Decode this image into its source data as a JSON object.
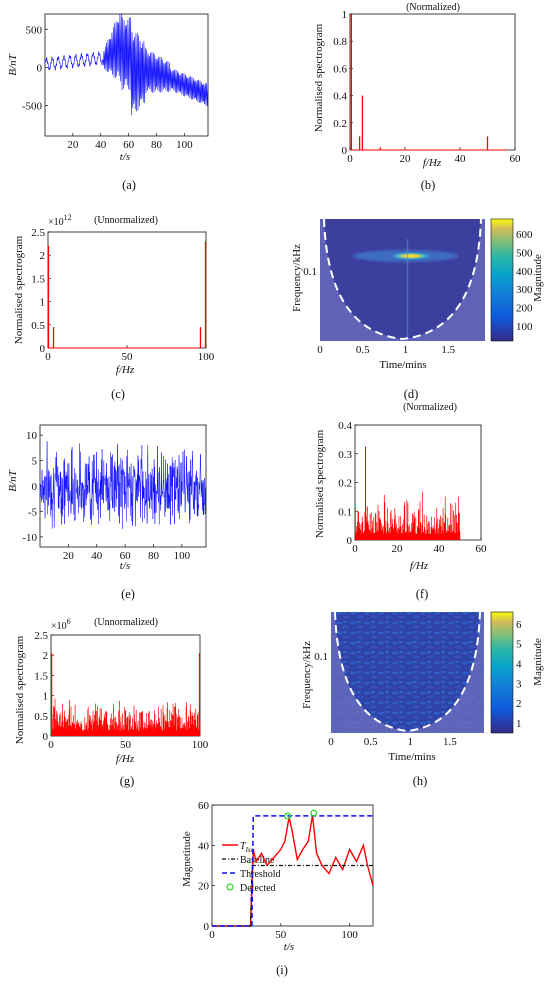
{
  "panel_labels": {
    "a": "(a)",
    "b": "(b)",
    "c": "(c)",
    "d": "(d)",
    "e": "(e)",
    "f": "(f)",
    "g": "(g)",
    "h": "(h)",
    "i": "(i)"
  },
  "colors": {
    "blue": "#0a0aff",
    "red": "#ff0000",
    "cwt_bg": "#3b3f9e",
    "cwt_cone": "#6e6fbf",
    "axis": "#111111"
  },
  "chart_data": [
    {
      "id": "a",
      "type": "line",
      "title": "",
      "xlabel": "t/s",
      "ylabel": "B/nT",
      "xlim": [
        0,
        117
      ],
      "ylim": [
        -900,
        700
      ],
      "xticks": [
        20,
        40,
        60,
        80,
        100
      ],
      "yticks": [
        500,
        0,
        -500
      ],
      "series": [
        {
          "color": "#0a0aff",
          "description_points": [
            [
              0,
              40
            ],
            [
              20,
              110
            ],
            [
              40,
              130
            ],
            [
              50,
              300
            ],
            [
              58,
              680
            ],
            [
              66,
              -860
            ],
            [
              80,
              120
            ],
            [
              100,
              -200
            ],
            [
              117,
              -350
            ]
          ]
        }
      ]
    },
    {
      "id": "b",
      "type": "line",
      "title": "(Normalized)",
      "xlabel": "f/Hz",
      "ylabel": "Normalised spectrogram",
      "xlim": [
        0,
        60
      ],
      "ylim": [
        0,
        1
      ],
      "xticks": [
        0,
        20,
        40,
        60
      ],
      "yticks": [
        0,
        0.2,
        0.4,
        0.6,
        0.8,
        1
      ],
      "peaks": [
        [
          0.5,
          1.0
        ],
        [
          3.5,
          0.1
        ],
        [
          4.5,
          0.4
        ],
        [
          11,
          0.02
        ],
        [
          50,
          0.1
        ]
      ]
    },
    {
      "id": "c",
      "type": "line",
      "title": "(Unnormalized)",
      "xlabel": "f/Hz",
      "ylabel": "Normalised spectrogram",
      "xlim": [
        0,
        100
      ],
      "ylim": [
        0,
        2.5
      ],
      "exponent": "12",
      "xticks": [
        0,
        50,
        100
      ],
      "yticks": [
        0,
        0.5,
        1,
        1.5,
        2,
        2.5
      ],
      "peaks": [
        [
          0.3,
          2.2
        ],
        [
          3.5,
          0.45
        ],
        [
          96.5,
          0.45
        ],
        [
          99.7,
          2.3
        ]
      ]
    },
    {
      "id": "d",
      "type": "heatmap",
      "title": "",
      "xlabel": "Time/mins",
      "ylabel": "Frequency/kHz",
      "xticks": [
        0,
        0.5,
        1,
        1.5
      ],
      "yticks": [
        0.1
      ],
      "colorbar": {
        "label": "Magnitude",
        "ticks": [
          100,
          200,
          300,
          400,
          500,
          600
        ]
      }
    },
    {
      "id": "e",
      "type": "line",
      "title": "",
      "xlabel": "t/s",
      "ylabel": "B/nT",
      "xlim": [
        0,
        117
      ],
      "ylim": [
        -12,
        12
      ],
      "xticks": [
        20,
        40,
        60,
        80,
        100
      ],
      "yticks": [
        10,
        5,
        0,
        -5,
        -10
      ]
    },
    {
      "id": "f",
      "type": "line",
      "title": "(Normalized)",
      "xlabel": "f/Hz",
      "ylabel": "Normalised spectrogram",
      "xlim": [
        0,
        60
      ],
      "ylim": [
        0,
        0.4
      ],
      "xticks": [
        0,
        20,
        40,
        60
      ],
      "yticks": [
        0,
        0.1,
        0.2,
        0.3,
        0.4
      ]
    },
    {
      "id": "g",
      "type": "line",
      "title": "(Unnormalized)",
      "xlabel": "f/Hz",
      "ylabel": "Normalised spectrogram",
      "xlim": [
        0,
        100
      ],
      "ylim": [
        0,
        2.5
      ],
      "exponent": "6",
      "xticks": [
        0,
        50,
        100
      ],
      "yticks": [
        0,
        0.5,
        1,
        1.5,
        2,
        2.5
      ]
    },
    {
      "id": "h",
      "type": "heatmap",
      "title": "",
      "xlabel": "Time/mins",
      "ylabel": "Frequency/kHz",
      "xticks": [
        0,
        0.5,
        1,
        1.5
      ],
      "yticks": [
        0.1
      ],
      "colorbar": {
        "label": "Magnitude",
        "ticks": [
          1,
          2,
          3,
          4,
          5,
          6
        ]
      }
    },
    {
      "id": "i",
      "type": "line",
      "title": "",
      "xlabel": "t/s",
      "ylabel": "Magnetitude",
      "xlim": [
        0,
        117
      ],
      "ylim": [
        0,
        60
      ],
      "xticks": [
        0,
        50,
        100
      ],
      "yticks": [
        0,
        20,
        40,
        60
      ],
      "legend": {
        "placement": "left",
        "entries": [
          "T_Iso",
          "Baseline",
          "Threshold",
          "Detected"
        ]
      },
      "series": [
        {
          "name": "T_Iso",
          "color": "#ff0000",
          "x": [
            0,
            28,
            30,
            32,
            36,
            40,
            45,
            50,
            53,
            56,
            58,
            62,
            66,
            70,
            73,
            76,
            80,
            85,
            90,
            95,
            100,
            105,
            110,
            113,
            117
          ],
          "y": [
            0,
            0,
            38,
            32,
            36,
            30,
            34,
            38,
            42,
            54,
            48,
            33,
            38,
            42,
            55,
            36,
            30,
            26,
            34,
            28,
            38,
            32,
            40,
            30,
            20
          ]
        },
        {
          "name": "Baseline",
          "color": "#111111",
          "x": [
            0,
            28,
            29,
            117
          ],
          "y": [
            0,
            0,
            30,
            30
          ]
        },
        {
          "name": "Threshold",
          "color": "#0a0aff",
          "x": [
            0,
            29,
            30,
            117
          ],
          "y": [
            0,
            0,
            54.6,
            54.6
          ]
        },
        {
          "name": "Detected",
          "color": "#22dd22",
          "x": [
            55,
            74
          ],
          "y": [
            54.5,
            56
          ]
        }
      ]
    }
  ]
}
